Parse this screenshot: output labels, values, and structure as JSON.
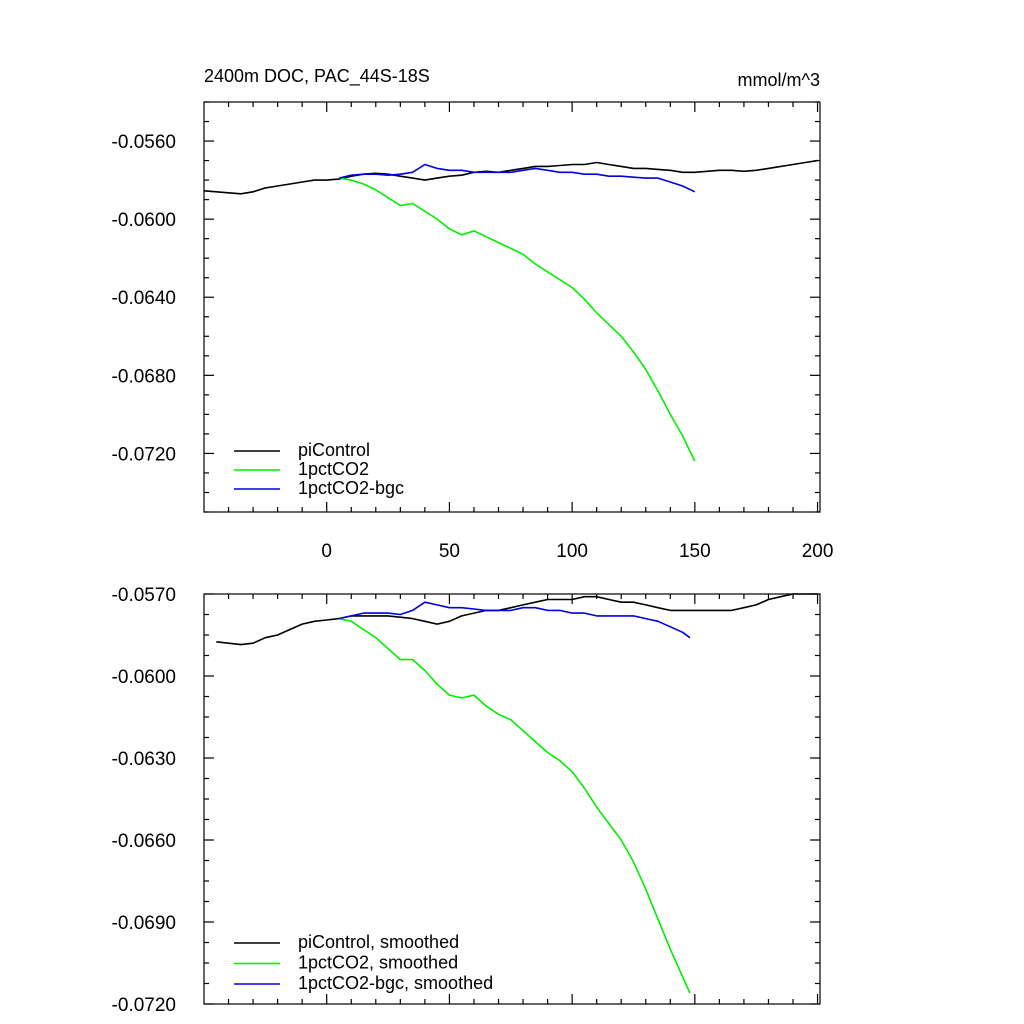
{
  "chart_data": [
    {
      "type": "line",
      "title": "2400m DOC, PAC_44S-18S",
      "units": "mmol/m^3",
      "xlim": [
        -50,
        201
      ],
      "ylim": [
        -0.075,
        -0.054
      ],
      "xticks": [
        0,
        50,
        100,
        150,
        200
      ],
      "xtick_labels": [
        "0",
        "50",
        "100",
        "150",
        "200"
      ],
      "yticks": [
        -0.056,
        -0.06,
        -0.064,
        -0.068,
        -0.072
      ],
      "ytick_labels": [
        "-0.0560",
        "-0.0600",
        "-0.0640",
        "-0.0680",
        "-0.0720"
      ],
      "grid": false,
      "legend_position": "bottom-left",
      "series": [
        {
          "name": "piControl",
          "color": "#000000",
          "x": [
            -50,
            -45,
            -40,
            -35,
            -30,
            -25,
            -20,
            -15,
            -10,
            -5,
            0,
            5,
            10,
            15,
            20,
            25,
            30,
            35,
            40,
            45,
            50,
            55,
            60,
            65,
            70,
            75,
            80,
            85,
            90,
            95,
            100,
            105,
            110,
            115,
            120,
            125,
            130,
            135,
            140,
            145,
            150,
            155,
            160,
            165,
            170,
            175,
            180,
            185,
            190,
            195,
            200
          ],
          "y": [
            -0.05855,
            -0.0586,
            -0.05865,
            -0.0587,
            -0.0586,
            -0.0584,
            -0.0583,
            -0.0582,
            -0.0581,
            -0.058,
            -0.058,
            -0.05795,
            -0.0578,
            -0.0577,
            -0.05765,
            -0.0577,
            -0.0578,
            -0.0579,
            -0.058,
            -0.0579,
            -0.0578,
            -0.05775,
            -0.0576,
            -0.05755,
            -0.0576,
            -0.0575,
            -0.0574,
            -0.0573,
            -0.0573,
            -0.05725,
            -0.0572,
            -0.0572,
            -0.0571,
            -0.0572,
            -0.0573,
            -0.0574,
            -0.0574,
            -0.05745,
            -0.0575,
            -0.0576,
            -0.0576,
            -0.05755,
            -0.0575,
            -0.0575,
            -0.05755,
            -0.0575,
            -0.0574,
            -0.0573,
            -0.0572,
            -0.0571,
            -0.057
          ]
        },
        {
          "name": "1pctCO2",
          "color": "#00ee00",
          "x": [
            5,
            10,
            15,
            20,
            25,
            30,
            35,
            40,
            45,
            50,
            55,
            60,
            65,
            70,
            75,
            80,
            85,
            90,
            95,
            100,
            105,
            110,
            115,
            120,
            125,
            130,
            135,
            140,
            145,
            150
          ],
          "y": [
            -0.0579,
            -0.058,
            -0.0582,
            -0.0585,
            -0.0589,
            -0.0593,
            -0.0592,
            -0.0596,
            -0.06,
            -0.0605,
            -0.0608,
            -0.0606,
            -0.0609,
            -0.0612,
            -0.0615,
            -0.0618,
            -0.0623,
            -0.0627,
            -0.0631,
            -0.0635,
            -0.0641,
            -0.0648,
            -0.0654,
            -0.066,
            -0.0668,
            -0.0677,
            -0.0688,
            -0.07,
            -0.0711,
            -0.0724
          ]
        },
        {
          "name": "1pctCO2-bgc",
          "color": "#0000dd",
          "x": [
            5,
            10,
            15,
            20,
            25,
            30,
            35,
            40,
            45,
            50,
            55,
            60,
            65,
            70,
            75,
            80,
            85,
            90,
            95,
            100,
            105,
            110,
            115,
            120,
            125,
            130,
            135,
            140,
            145,
            150
          ],
          "y": [
            -0.0579,
            -0.05775,
            -0.0577,
            -0.0577,
            -0.05775,
            -0.0577,
            -0.0576,
            -0.0572,
            -0.0574,
            -0.0575,
            -0.0575,
            -0.0576,
            -0.0576,
            -0.0576,
            -0.0576,
            -0.0575,
            -0.0574,
            -0.0575,
            -0.0576,
            -0.0576,
            -0.0577,
            -0.0577,
            -0.0578,
            -0.0578,
            -0.05785,
            -0.0579,
            -0.0579,
            -0.0581,
            -0.0583,
            -0.0586
          ]
        }
      ]
    },
    {
      "type": "line",
      "xlim": [
        -50,
        201
      ],
      "ylim": [
        -0.072,
        -0.057
      ],
      "xticks": [
        0,
        50,
        100,
        150,
        200
      ],
      "yticks": [
        -0.057,
        -0.06,
        -0.063,
        -0.066,
        -0.069,
        -0.072
      ],
      "ytick_labels": [
        "-0.0570",
        "-0.0600",
        "-0.0630",
        "-0.0660",
        "-0.0690",
        "-0.0720"
      ],
      "grid": false,
      "legend_position": "bottom-left",
      "series": [
        {
          "name": "piControl, smoothed",
          "color": "#000000",
          "x": [
            -45,
            -40,
            -35,
            -30,
            -25,
            -20,
            -15,
            -10,
            -5,
            0,
            5,
            10,
            15,
            20,
            25,
            30,
            35,
            40,
            45,
            50,
            55,
            60,
            65,
            70,
            75,
            80,
            85,
            90,
            95,
            100,
            105,
            110,
            115,
            120,
            125,
            130,
            135,
            140,
            145,
            150,
            155,
            160,
            165,
            170,
            175,
            180,
            185,
            190,
            195,
            200
          ],
          "y": [
            -0.05875,
            -0.0588,
            -0.05885,
            -0.0588,
            -0.0586,
            -0.0585,
            -0.0583,
            -0.0581,
            -0.058,
            -0.05795,
            -0.0579,
            -0.0578,
            -0.0578,
            -0.0578,
            -0.0578,
            -0.05785,
            -0.0579,
            -0.058,
            -0.0581,
            -0.058,
            -0.0578,
            -0.0577,
            -0.0576,
            -0.0576,
            -0.0575,
            -0.0574,
            -0.0573,
            -0.0572,
            -0.0572,
            -0.0572,
            -0.0571,
            -0.0571,
            -0.0572,
            -0.0573,
            -0.0573,
            -0.0574,
            -0.0575,
            -0.0576,
            -0.0576,
            -0.0576,
            -0.0576,
            -0.0576,
            -0.0576,
            -0.0575,
            -0.0574,
            -0.0572,
            -0.0571,
            -0.057,
            -0.057,
            -0.057
          ]
        },
        {
          "name": "1pctCO2, smoothed",
          "color": "#00ee00",
          "x": [
            5,
            10,
            15,
            20,
            25,
            30,
            35,
            40,
            45,
            50,
            55,
            60,
            65,
            70,
            75,
            80,
            85,
            90,
            95,
            100,
            105,
            110,
            115,
            120,
            125,
            130,
            135,
            140,
            145,
            148
          ],
          "y": [
            -0.0579,
            -0.058,
            -0.0583,
            -0.0586,
            -0.059,
            -0.0594,
            -0.0594,
            -0.0598,
            -0.0603,
            -0.0607,
            -0.0608,
            -0.0607,
            -0.0611,
            -0.0614,
            -0.0616,
            -0.062,
            -0.0624,
            -0.0628,
            -0.0631,
            -0.0635,
            -0.0641,
            -0.0648,
            -0.0654,
            -0.066,
            -0.0668,
            -0.0678,
            -0.0689,
            -0.07,
            -0.071,
            -0.0716
          ]
        },
        {
          "name": "1pctCO2-bgc, smoothed",
          "color": "#0000dd",
          "x": [
            5,
            10,
            15,
            20,
            25,
            30,
            35,
            40,
            45,
            50,
            55,
            60,
            65,
            70,
            75,
            80,
            85,
            90,
            95,
            100,
            105,
            110,
            115,
            120,
            125,
            130,
            135,
            140,
            145,
            148
          ],
          "y": [
            -0.0579,
            -0.0578,
            -0.0577,
            -0.0577,
            -0.0577,
            -0.05775,
            -0.0576,
            -0.0573,
            -0.0574,
            -0.0575,
            -0.0575,
            -0.05755,
            -0.0576,
            -0.0576,
            -0.0576,
            -0.0575,
            -0.0575,
            -0.0576,
            -0.0576,
            -0.0577,
            -0.0577,
            -0.0578,
            -0.0578,
            -0.0578,
            -0.0578,
            -0.0579,
            -0.058,
            -0.0582,
            -0.0584,
            -0.0586
          ]
        }
      ]
    }
  ]
}
